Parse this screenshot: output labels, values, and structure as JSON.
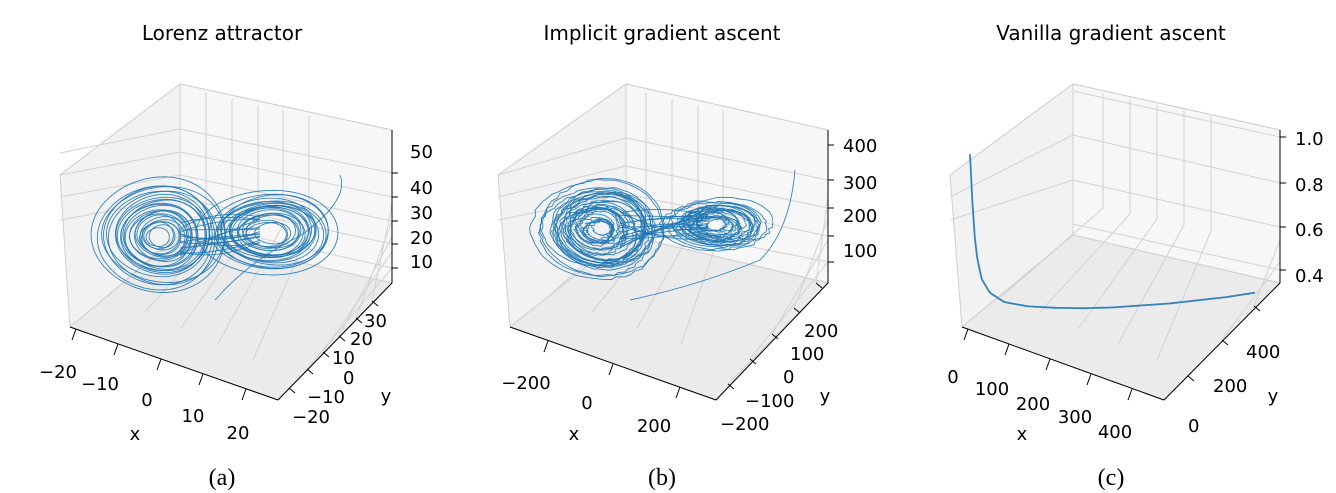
{
  "chart_data": [
    {
      "type": "line",
      "projection": "3d",
      "title": "Lorenz attractor",
      "caption": "(a)",
      "xlabel": "x",
      "ylabel": "y",
      "zlabel": "",
      "xticks": [
        "−20",
        "−10",
        "0",
        "10",
        "20"
      ],
      "yticks": [
        "−20",
        "−10",
        "0",
        "10",
        "20",
        "30"
      ],
      "zticks": [
        "10",
        "20",
        "30",
        "40",
        "50"
      ],
      "series": [
        {
          "color": "#1f77b4",
          "description_values": "chaotic two-lobed trajectory",
          "lobes": [
            {
              "center": [
                -8.5,
                -8.5,
                27
              ],
              "radius_range": [
                2,
                12
              ],
              "loops": 26
            },
            {
              "center": [
                8.5,
                8.5,
                27
              ],
              "radius_range": [
                3,
                12
              ],
              "loops": 22
            }
          ]
        }
      ]
    },
    {
      "type": "line",
      "projection": "3d",
      "title": "Implicit gradient ascent",
      "caption": "(b)",
      "xlabel": "x",
      "ylabel": "y",
      "zlabel": "",
      "xticks": [
        "−200",
        "0",
        "200"
      ],
      "yticks": [
        "−200",
        "−100",
        "0",
        "100",
        "200"
      ],
      "zticks": [
        "100",
        "200",
        "300",
        "400"
      ],
      "series": [
        {
          "color": "#1f77b4",
          "lobes": [
            {
              "center": [
                -90,
                -90,
                250
              ],
              "radius_range": [
                20,
                130
              ],
              "loops": 32
            },
            {
              "center": [
                90,
                90,
                240
              ],
              "radius_range": [
                25,
                110
              ],
              "loops": 22
            }
          ]
        }
      ]
    },
    {
      "type": "line",
      "projection": "3d",
      "title": "Vanilla gradient ascent",
      "caption": "(c)",
      "xlabel": "x",
      "ylabel": "y",
      "zlabel": "",
      "xticks": [
        "0",
        "100",
        "200",
        "300",
        "400"
      ],
      "yticks": [
        "0",
        "200",
        "400"
      ],
      "zticks": [
        "0.4",
        "0.6",
        "0.8",
        "1.0"
      ],
      "series": [
        {
          "color": "#1f77b4",
          "x": [
            0,
            5,
            10,
            20,
            35,
            60,
            100,
            150,
            200,
            250,
            300,
            350,
            400,
            450,
            500
          ],
          "y": [
            0,
            5,
            10,
            20,
            35,
            60,
            100,
            150,
            200,
            250,
            300,
            350,
            400,
            450,
            500
          ],
          "z": [
            1.02,
            0.78,
            0.62,
            0.5,
            0.44,
            0.4,
            0.38,
            0.37,
            0.365,
            0.365,
            0.37,
            0.375,
            0.385,
            0.395,
            0.41
          ]
        }
      ]
    }
  ]
}
